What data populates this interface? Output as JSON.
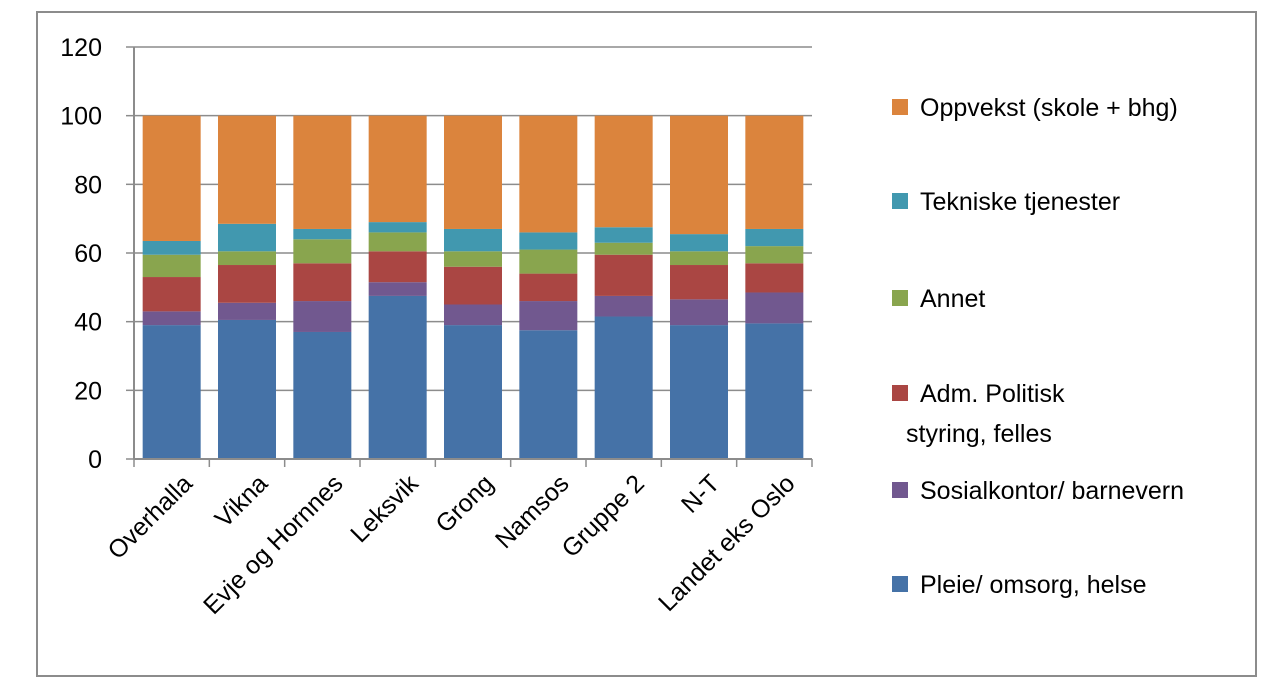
{
  "chart_data": {
    "type": "bar",
    "stacked": true,
    "categories": [
      "Overhalla",
      "Vikna",
      "Evje og Hornnes",
      "Leksvik",
      "Grong",
      "Namsos",
      "Gruppe 2",
      "N-T",
      "Landet eks Oslo"
    ],
    "ylim": [
      0,
      120
    ],
    "yticks": [
      0,
      20,
      40,
      60,
      80,
      100,
      120
    ],
    "grid": true,
    "legend_position": "right",
    "series": [
      {
        "name": "Pleie/ omsorg, helse",
        "color": "#4572A7",
        "values": [
          39,
          40.5,
          37,
          47.5,
          39,
          37.5,
          41.5,
          39,
          39.5
        ]
      },
      {
        "name": "Sosialkontor/ barnevern",
        "color": "#71588F",
        "values": [
          4,
          5,
          9,
          4,
          6,
          8.5,
          6,
          7.5,
          9
        ]
      },
      {
        "name": "Adm. Politisk styring, felles",
        "color": "#AA4643",
        "values": [
          10,
          11,
          11,
          9,
          11,
          8,
          12,
          10,
          8.5
        ]
      },
      {
        "name": "Annet",
        "color": "#89A54E",
        "values": [
          6.5,
          4,
          7,
          5.5,
          4.5,
          7,
          3.5,
          4,
          5
        ]
      },
      {
        "name": "Tekniske tjenester",
        "color": "#4198AF",
        "values": [
          4,
          8,
          3,
          3,
          6.5,
          5,
          4.5,
          5,
          5
        ]
      },
      {
        "name": "Oppvekst (skole + bhg)",
        "color": "#DB843D",
        "values": [
          36.5,
          31.5,
          33,
          31,
          33,
          34,
          32.5,
          34.5,
          33
        ]
      }
    ]
  },
  "legend_lines": {
    "s5": [
      "Oppvekst (skole + bhg)"
    ],
    "s4": [
      "Tekniske tjenester"
    ],
    "s3": [
      "Annet"
    ],
    "s2": [
      "Adm. Politisk",
      "styring, felles"
    ],
    "s1": [
      "Sosialkontor/ barnevern"
    ],
    "s0": [
      "Pleie/ omsorg, helse"
    ]
  }
}
